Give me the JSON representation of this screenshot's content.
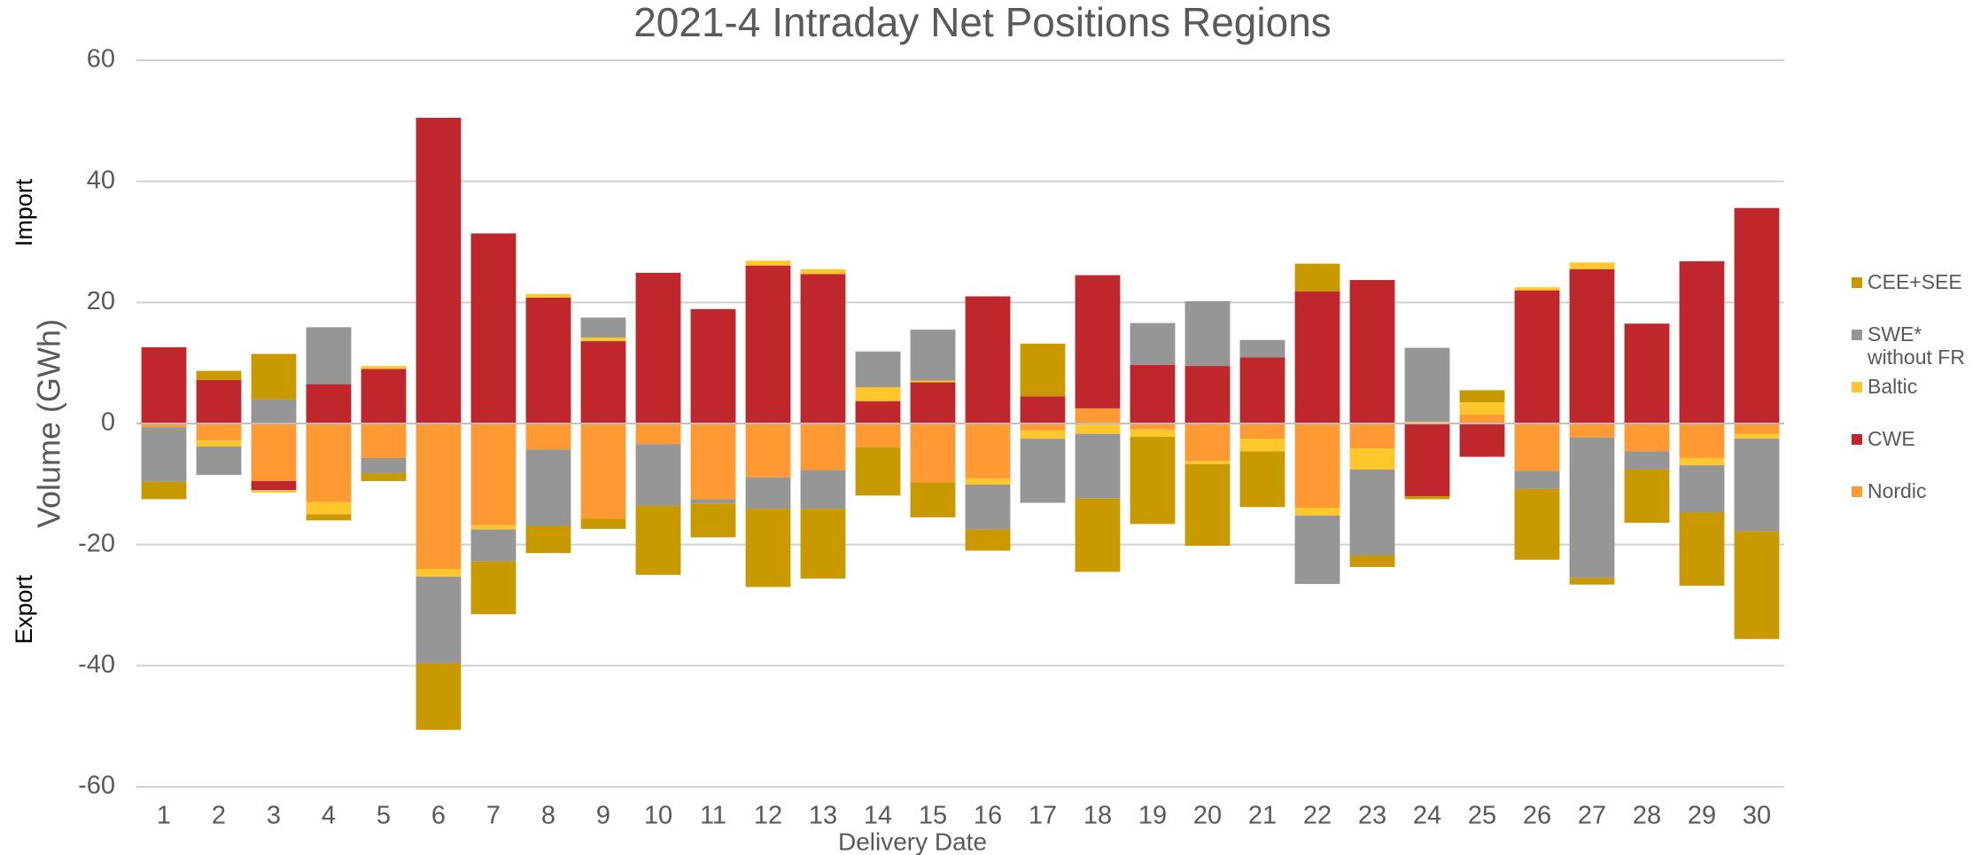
{
  "chart_data": {
    "type": "stacked_bar",
    "title": "2021-4 Intraday Net Positions Regions",
    "xlabel": "Delivery Date",
    "ylabel": "Volume (GWh)",
    "annotations": [
      "Import",
      "Export"
    ],
    "categories": [
      "1",
      "2",
      "3",
      "4",
      "5",
      "6",
      "7",
      "8",
      "9",
      "10",
      "11",
      "12",
      "13",
      "14",
      "15",
      "16",
      "17",
      "18",
      "19",
      "20",
      "21",
      "22",
      "23",
      "24",
      "25",
      "26",
      "27",
      "28",
      "29",
      "30"
    ],
    "series": [
      {
        "name": "CEE+SEE",
        "color": "#c99a00",
        "values": [
          -2.9,
          1.5,
          7.5,
          -1.0,
          -1.3,
          -11.0,
          -8.7,
          -4.5,
          -1.7,
          -11.4,
          -5.6,
          -12.9,
          -11.5,
          -8.0,
          -5.8,
          -3.5,
          8.7,
          -12.1,
          -14.4,
          -13.5,
          -9.2,
          4.6,
          -1.9,
          -0.5,
          2.0,
          -11.7,
          -1.1,
          -8.8,
          -12.1,
          -17.8
        ]
      },
      {
        "name": "SWE* without FR",
        "color": "#969696",
        "values": [
          -9.0,
          -4.7,
          4.0,
          9.4,
          -2.5,
          -14.3,
          -5.3,
          -12.6,
          3.3,
          -10.2,
          -0.7,
          -5.2,
          -6.4,
          5.9,
          8.4,
          -7.4,
          -10.6,
          -10.7,
          6.9,
          10.7,
          2.9,
          -11.3,
          -14.2,
          12.2,
          0,
          -3.0,
          -23.2,
          -3.0,
          -7.8,
          -15.3
        ]
      },
      {
        "name": "Baltic",
        "color": "#ffc72c",
        "values": [
          0,
          -1.0,
          -0.4,
          -2.0,
          0.5,
          -1.3,
          -0.7,
          0.6,
          0.6,
          0,
          0,
          0.8,
          0.8,
          2.3,
          0.3,
          -1.0,
          -1.4,
          -1.7,
          -1.2,
          -0.5,
          -2.1,
          -1.3,
          -3.5,
          0.3,
          2.0,
          0.5,
          1.1,
          0,
          -1.2,
          -0.8
        ]
      },
      {
        "name": "CWE",
        "color": "#c0272d",
        "values": [
          12.6,
          7.2,
          -1.5,
          6.5,
          9.0,
          50.5,
          31.4,
          20.8,
          13.6,
          24.9,
          18.9,
          26.1,
          24.7,
          3.7,
          6.8,
          21.0,
          4.5,
          22.0,
          9.7,
          9.5,
          10.9,
          21.8,
          23.7,
          -12.0,
          -5.5,
          22.0,
          25.5,
          16.5,
          26.8,
          35.6
        ]
      },
      {
        "name": "Nordic",
        "color": "#ff9933",
        "values": [
          -0.6,
          -2.8,
          -9.5,
          -13.0,
          -5.7,
          -24.0,
          -16.8,
          -4.3,
          -15.7,
          -3.4,
          -12.5,
          -8.9,
          -7.7,
          -3.9,
          -9.7,
          -9.1,
          -1.1,
          2.5,
          -1.0,
          -6.2,
          -2.5,
          -13.9,
          -4.1,
          0,
          1.5,
          -7.8,
          -2.3,
          -4.6,
          -5.7,
          -1.7
        ]
      }
    ],
    "ylim": [
      -60,
      60
    ],
    "yticks": [
      -60,
      -40,
      -20,
      0,
      20,
      40,
      60
    ],
    "grid": true,
    "legend": "right"
  }
}
